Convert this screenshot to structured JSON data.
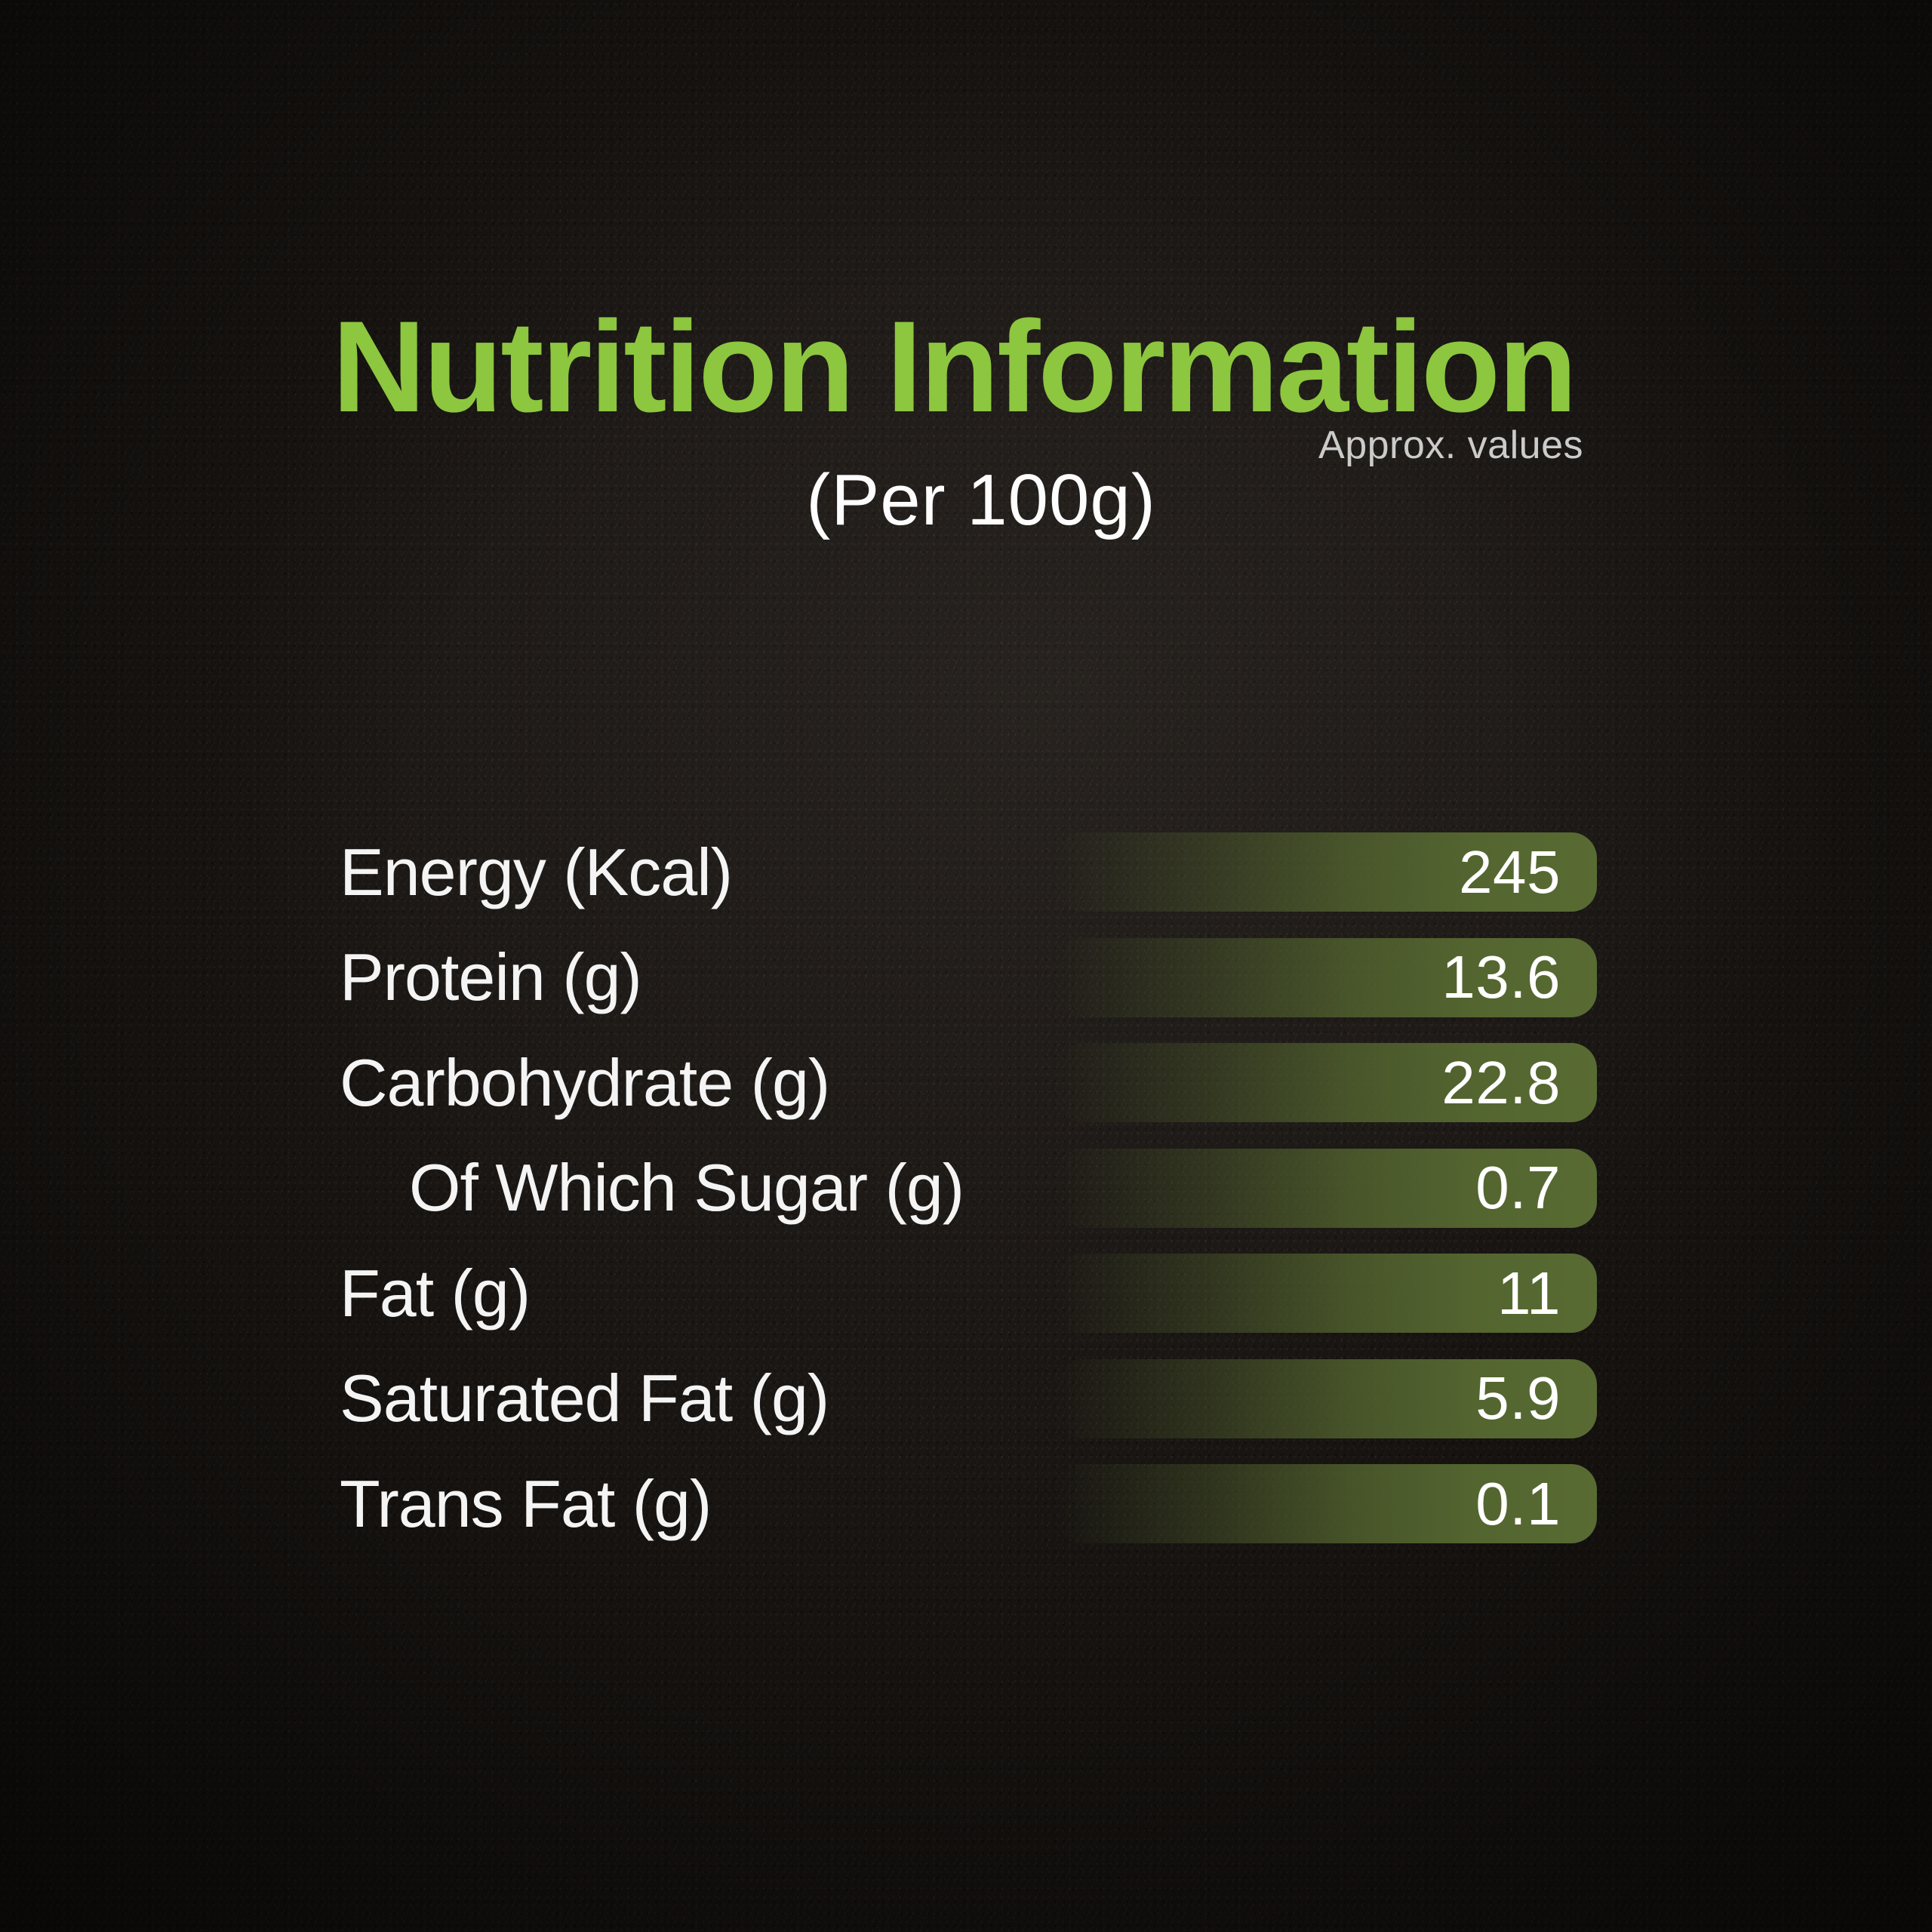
{
  "header": {
    "title": "Nutrition Information",
    "note": "Approx. values",
    "serving": "(Per 100g)"
  },
  "colors": {
    "accent_green": "#8dc63f",
    "bar_olive": "#546530",
    "text_white": "#f4f4f4",
    "note_gray": "#cbcbcb",
    "background": "#1a1613"
  },
  "rows": [
    {
      "label": "Energy (Kcal)",
      "value": "245",
      "indent": false
    },
    {
      "label": "Protein (g)",
      "value": "13.6",
      "indent": false
    },
    {
      "label": "Carbohydrate (g)",
      "value": "22.8",
      "indent": false
    },
    {
      "label": "Of Which Sugar (g)",
      "value": "0.7",
      "indent": true
    },
    {
      "label": "Fat (g)",
      "value": "11",
      "indent": false
    },
    {
      "label": "Saturated Fat (g)",
      "value": "5.9",
      "indent": false
    },
    {
      "label": "Trans Fat (g)",
      "value": "0.1",
      "indent": false
    }
  ],
  "chart_data": {
    "type": "bar",
    "orientation": "horizontal",
    "title": "Nutrition Information",
    "subtitle": "(Per 100g)",
    "annotation": "Approx. values",
    "categories": [
      "Energy (Kcal)",
      "Protein (g)",
      "Carbohydrate (g)",
      "Of Which Sugar (g)",
      "Fat (g)",
      "Saturated Fat (g)",
      "Trans Fat (g)"
    ],
    "values": [
      245,
      13.6,
      22.8,
      0.7,
      11,
      5.9,
      0.1
    ],
    "value_labels_shown": true,
    "equal_bar_lengths": true,
    "bar_color": "#546530",
    "legend": "none",
    "grid": false
  }
}
